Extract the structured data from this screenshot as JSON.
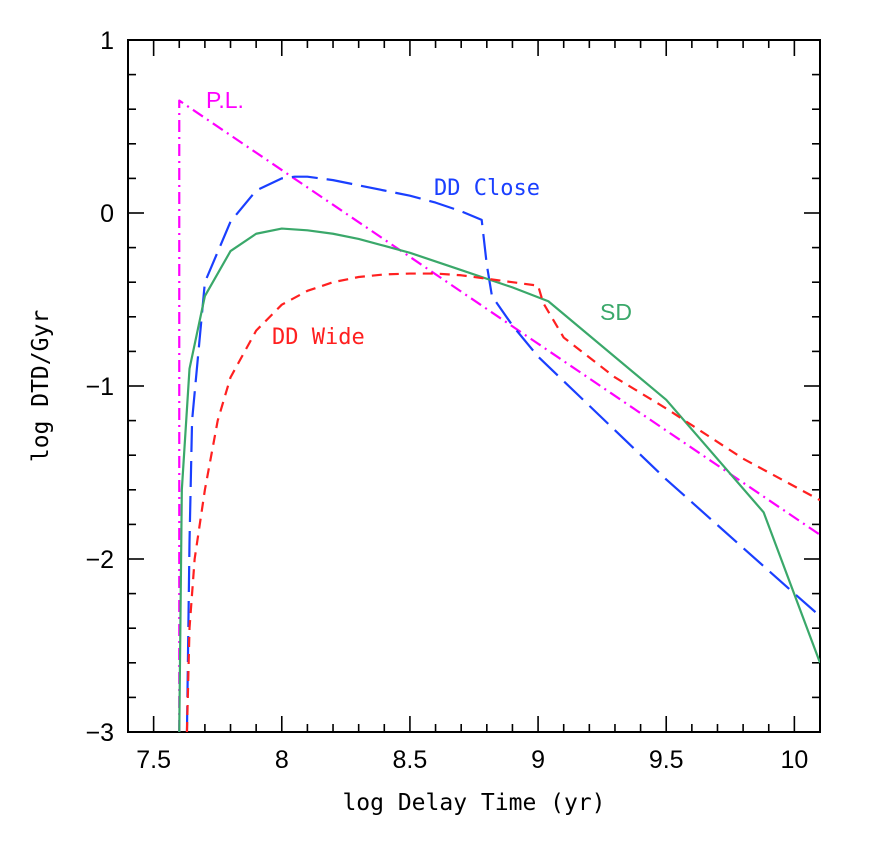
{
  "chart_data": {
    "type": "line",
    "title": "",
    "xlabel": "log Delay Time (yr)",
    "ylabel": "log DTD/Gyr",
    "xlim": [
      7.4,
      10.1
    ],
    "ylim": [
      -3,
      1
    ],
    "xticks": [
      7.5,
      8,
      8.5,
      9,
      9.5,
      10
    ],
    "xtick_labels": [
      "7.5",
      "8",
      "8.5",
      "9",
      "9.5",
      "10"
    ],
    "yticks": [
      -3,
      -2,
      -1,
      0,
      1
    ],
    "ytick_labels": [
      "−3",
      "−2",
      "−1",
      "0",
      "1"
    ],
    "grid": false,
    "series": [
      {
        "name": "P.L.",
        "label": "P.L.",
        "color": "#ff00ff",
        "style": "dash-dot",
        "points": [
          [
            7.6,
            -3.0
          ],
          [
            7.6,
            0.65
          ],
          [
            10.1,
            -1.86
          ]
        ]
      },
      {
        "name": "DD Close",
        "label": "DD Close",
        "color": "#1a3fff",
        "style": "long-dash",
        "points": [
          [
            7.63,
            -3.0
          ],
          [
            7.64,
            -1.9
          ],
          [
            7.65,
            -1.2
          ],
          [
            7.7,
            -0.4
          ],
          [
            7.8,
            -0.05
          ],
          [
            7.9,
            0.13
          ],
          [
            8.0,
            0.2
          ],
          [
            8.05,
            0.21
          ],
          [
            8.1,
            0.21
          ],
          [
            8.2,
            0.19
          ],
          [
            8.3,
            0.16
          ],
          [
            8.4,
            0.13
          ],
          [
            8.5,
            0.1
          ],
          [
            8.6,
            0.06
          ],
          [
            8.7,
            0.01
          ],
          [
            8.78,
            -0.04
          ],
          [
            8.8,
            -0.3
          ],
          [
            8.82,
            -0.48
          ],
          [
            8.9,
            -0.65
          ],
          [
            9.0,
            -0.83
          ],
          [
            9.5,
            -1.54
          ],
          [
            10.0,
            -2.2
          ],
          [
            10.1,
            -2.33
          ]
        ]
      },
      {
        "name": "SD",
        "label": "SD",
        "color": "#3aa86a",
        "style": "solid",
        "points": [
          [
            7.6,
            -3.0
          ],
          [
            7.61,
            -1.6
          ],
          [
            7.64,
            -0.9
          ],
          [
            7.7,
            -0.48
          ],
          [
            7.8,
            -0.22
          ],
          [
            7.9,
            -0.12
          ],
          [
            8.0,
            -0.09
          ],
          [
            8.1,
            -0.1
          ],
          [
            8.2,
            -0.12
          ],
          [
            8.3,
            -0.15
          ],
          [
            8.4,
            -0.19
          ],
          [
            8.5,
            -0.23
          ],
          [
            8.6,
            -0.28
          ],
          [
            8.7,
            -0.33
          ],
          [
            8.8,
            -0.38
          ],
          [
            8.9,
            -0.43
          ],
          [
            9.04,
            -0.51
          ],
          [
            9.5,
            -1.08
          ],
          [
            9.88,
            -1.73
          ],
          [
            10.1,
            -2.6
          ]
        ]
      },
      {
        "name": "DD Wide",
        "label": "DD Wide",
        "color": "#ff2020",
        "style": "short-dash",
        "points": [
          [
            7.63,
            -3.0
          ],
          [
            7.64,
            -2.4
          ],
          [
            7.66,
            -2.0
          ],
          [
            7.7,
            -1.6
          ],
          [
            7.75,
            -1.2
          ],
          [
            7.8,
            -0.95
          ],
          [
            7.9,
            -0.68
          ],
          [
            8.0,
            -0.53
          ],
          [
            8.1,
            -0.45
          ],
          [
            8.2,
            -0.4
          ],
          [
            8.3,
            -0.37
          ],
          [
            8.4,
            -0.355
          ],
          [
            8.5,
            -0.35
          ],
          [
            8.6,
            -0.35
          ],
          [
            8.7,
            -0.36
          ],
          [
            8.8,
            -0.38
          ],
          [
            8.9,
            -0.4
          ],
          [
            9.0,
            -0.42
          ],
          [
            9.02,
            -0.52
          ],
          [
            9.1,
            -0.72
          ],
          [
            9.3,
            -0.95
          ],
          [
            9.5,
            -1.13
          ],
          [
            9.8,
            -1.42
          ],
          [
            10.1,
            -1.66
          ]
        ]
      }
    ]
  }
}
